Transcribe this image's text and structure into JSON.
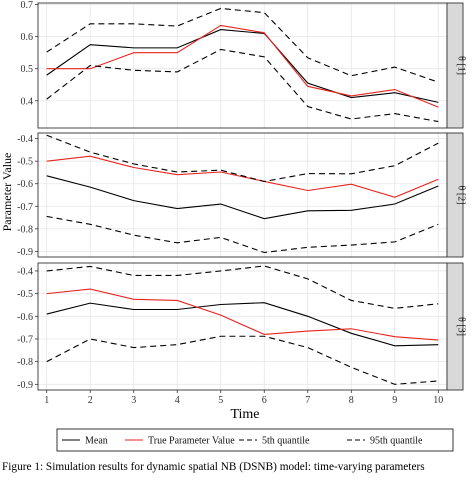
{
  "caption": "Figure 1: Simulation results for dynamic spatial NB (DSNB) model: time-varying parameters",
  "chart_data": {
    "type": "line",
    "xlabel": "Time",
    "ylabel": "Parameter Value",
    "x": [
      1,
      2,
      3,
      4,
      5,
      6,
      7,
      8,
      9,
      10
    ],
    "xlim": [
      0.8,
      10.2
    ],
    "legend_position": "bottom",
    "legend": [
      {
        "label": "Mean",
        "color": "#000000",
        "dash": "solid"
      },
      {
        "label": "True Parameter Value",
        "color": "#e8231d",
        "dash": "solid"
      },
      {
        "label": "5th quantile",
        "color": "#000000",
        "dash": "dashed"
      },
      {
        "label": "95th quantile",
        "color": "#000000",
        "dash": "dashed"
      }
    ],
    "panels": [
      {
        "strip": "θ [1]",
        "ylim": [
          0.315,
          0.705
        ],
        "yticks": [
          0.4,
          0.5,
          0.6,
          0.7
        ],
        "ytick_labels": [
          "0.4",
          "0.5",
          "0.6",
          "0.7"
        ],
        "series": [
          {
            "values": [
              0.48,
              0.575,
              0.565,
              0.565,
              0.622,
              0.61,
              0.455,
              0.41,
              0.425,
              0.395
            ],
            "color": "#000000",
            "dash": "solid"
          },
          {
            "values": [
              0.5,
              0.5,
              0.55,
              0.55,
              0.635,
              0.612,
              0.445,
              0.415,
              0.435,
              0.38
            ],
            "color": "#e8231d",
            "dash": "solid"
          },
          {
            "values": [
              0.405,
              0.51,
              0.495,
              0.49,
              0.56,
              0.537,
              0.382,
              0.343,
              0.36,
              0.335
            ],
            "color": "#000000",
            "dash": "dashed"
          },
          {
            "values": [
              0.552,
              0.64,
              0.64,
              0.633,
              0.688,
              0.675,
              0.534,
              0.478,
              0.505,
              0.458
            ],
            "color": "#000000",
            "dash": "dashed"
          }
        ]
      },
      {
        "strip": "θ [2]",
        "ylim": [
          -0.925,
          -0.375
        ],
        "yticks": [
          -0.4,
          -0.5,
          -0.6,
          -0.7,
          -0.8,
          -0.9
        ],
        "ytick_labels": [
          "-0.4",
          "-0.5",
          "-0.6",
          "-0.7",
          "-0.8",
          "-0.9"
        ],
        "series": [
          {
            "values": [
              -0.565,
              -0.615,
              -0.675,
              -0.71,
              -0.69,
              -0.755,
              -0.72,
              -0.718,
              -0.69,
              -0.61
            ],
            "color": "#000000",
            "dash": "solid"
          },
          {
            "values": [
              -0.5,
              -0.478,
              -0.528,
              -0.56,
              -0.548,
              -0.59,
              -0.63,
              -0.602,
              -0.66,
              -0.58
            ],
            "color": "#e8231d",
            "dash": "solid"
          },
          {
            "values": [
              -0.745,
              -0.78,
              -0.828,
              -0.862,
              -0.838,
              -0.905,
              -0.882,
              -0.872,
              -0.858,
              -0.78
            ],
            "color": "#000000",
            "dash": "dashed"
          },
          {
            "values": [
              -0.385,
              -0.46,
              -0.512,
              -0.548,
              -0.54,
              -0.59,
              -0.555,
              -0.556,
              -0.52,
              -0.42
            ],
            "color": "#000000",
            "dash": "dashed"
          }
        ]
      },
      {
        "strip": "θ [3]",
        "ylim": [
          -0.925,
          -0.365
        ],
        "yticks": [
          -0.4,
          -0.5,
          -0.6,
          -0.7,
          -0.8,
          -0.9
        ],
        "ytick_labels": [
          "-0.4",
          "-0.5",
          "-0.6",
          "-0.7",
          "-0.8",
          "-0.9"
        ],
        "series": [
          {
            "values": [
              -0.59,
              -0.542,
              -0.57,
              -0.57,
              -0.548,
              -0.54,
              -0.6,
              -0.675,
              -0.73,
              -0.725
            ],
            "color": "#000000",
            "dash": "solid"
          },
          {
            "values": [
              -0.5,
              -0.48,
              -0.525,
              -0.53,
              -0.595,
              -0.68,
              -0.665,
              -0.655,
              -0.69,
              -0.705
            ],
            "color": "#e8231d",
            "dash": "solid"
          },
          {
            "values": [
              -0.8,
              -0.7,
              -0.738,
              -0.725,
              -0.688,
              -0.688,
              -0.738,
              -0.825,
              -0.9,
              -0.885
            ],
            "color": "#000000",
            "dash": "dashed"
          },
          {
            "values": [
              -0.4,
              -0.38,
              -0.42,
              -0.42,
              -0.4,
              -0.378,
              -0.435,
              -0.53,
              -0.565,
              -0.545
            ],
            "color": "#000000",
            "dash": "dashed"
          }
        ]
      }
    ]
  }
}
